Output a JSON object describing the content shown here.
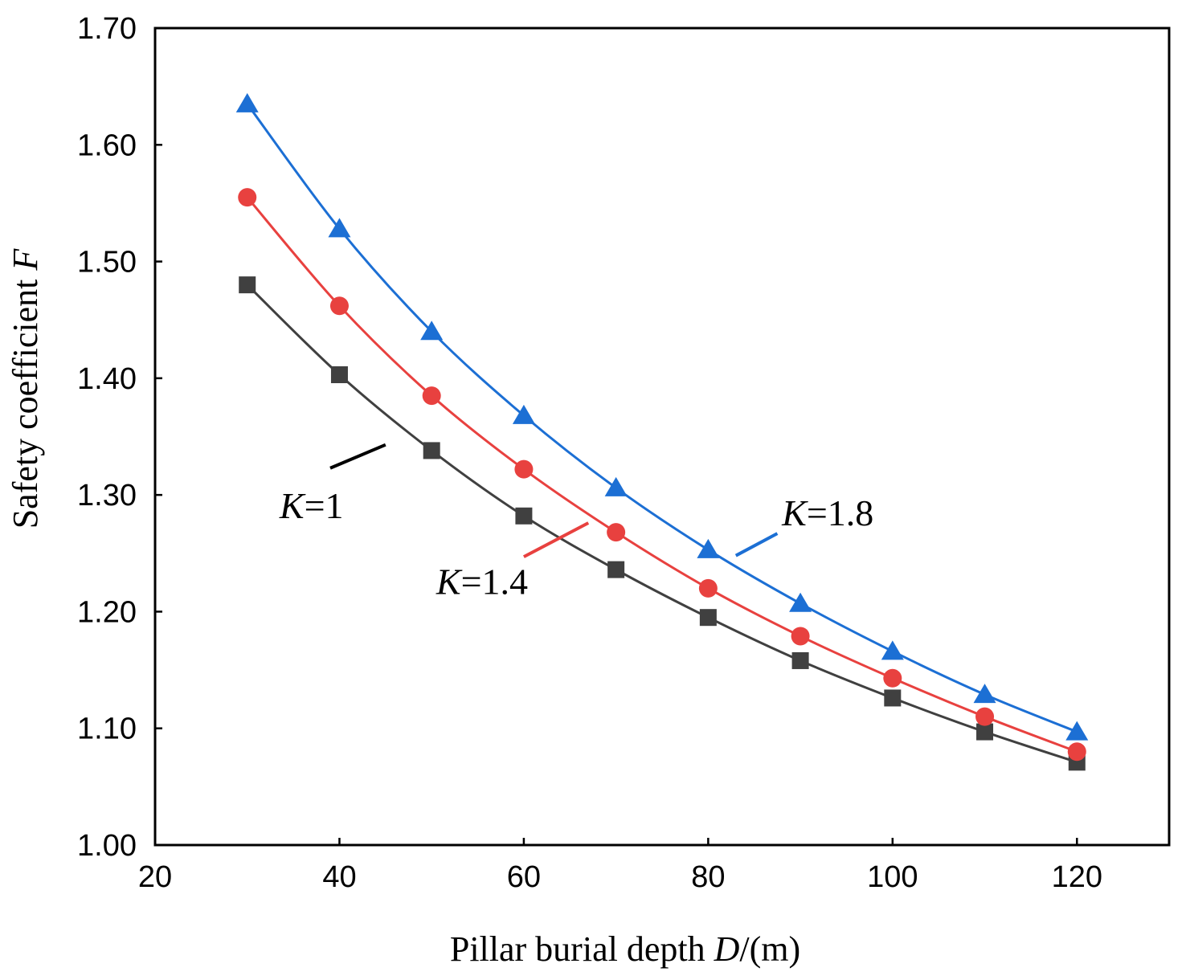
{
  "chart_data": {
    "type": "line",
    "title": "",
    "xlabel": "Pillar burial depth D/(m)",
    "xlabel_parts": {
      "prefix": "Pillar burial depth ",
      "var": "D",
      "suffix": "/(m)"
    },
    "ylabel": "Safety coefficient F",
    "ylabel_parts": {
      "prefix": "Safety coefficient ",
      "var": "F"
    },
    "xlim": [
      20,
      130
    ],
    "ylim": [
      1.0,
      1.7
    ],
    "xticks": [
      20,
      40,
      60,
      80,
      100,
      120
    ],
    "xtick_labels": [
      "20",
      "40",
      "60",
      "80",
      "100",
      "120"
    ],
    "yticks": [
      1.0,
      1.1,
      1.2,
      1.3,
      1.4,
      1.5,
      1.6,
      1.7
    ],
    "ytick_labels": [
      "1.00",
      "1.10",
      "1.20",
      "1.30",
      "1.40",
      "1.50",
      "1.60",
      "1.70"
    ],
    "grid": false,
    "x": [
      30,
      40,
      50,
      60,
      70,
      80,
      90,
      100,
      110,
      120
    ],
    "series": [
      {
        "name": "K=1",
        "var": "K",
        "eq": "=1",
        "color": "#404040",
        "marker": "square",
        "values": [
          1.48,
          1.403,
          1.338,
          1.282,
          1.236,
          1.195,
          1.158,
          1.126,
          1.097,
          1.071
        ],
        "label_at": [
          33.5,
          1.28
        ],
        "leader": [
          [
            39,
            1.323
          ],
          [
            45,
            1.343
          ]
        ]
      },
      {
        "name": "K=1.4",
        "var": "K",
        "eq": "=1.4",
        "color": "#e8413f",
        "marker": "circle",
        "values": [
          1.555,
          1.462,
          1.385,
          1.322,
          1.268,
          1.22,
          1.179,
          1.143,
          1.11,
          1.08
        ],
        "label_at": [
          50.5,
          1.215
        ],
        "leader": [
          [
            60,
            1.247
          ],
          [
            67,
            1.276
          ]
        ]
      },
      {
        "name": "K=1.8",
        "var": "K",
        "eq": "=1.8",
        "color": "#1c6fd4",
        "marker": "triangle",
        "values": [
          1.635,
          1.528,
          1.44,
          1.368,
          1.306,
          1.253,
          1.207,
          1.166,
          1.129,
          1.097
        ],
        "label_at": [
          88,
          1.274
        ],
        "leader": [
          [
            83,
            1.248
          ],
          [
            87.5,
            1.267
          ]
        ]
      }
    ]
  }
}
